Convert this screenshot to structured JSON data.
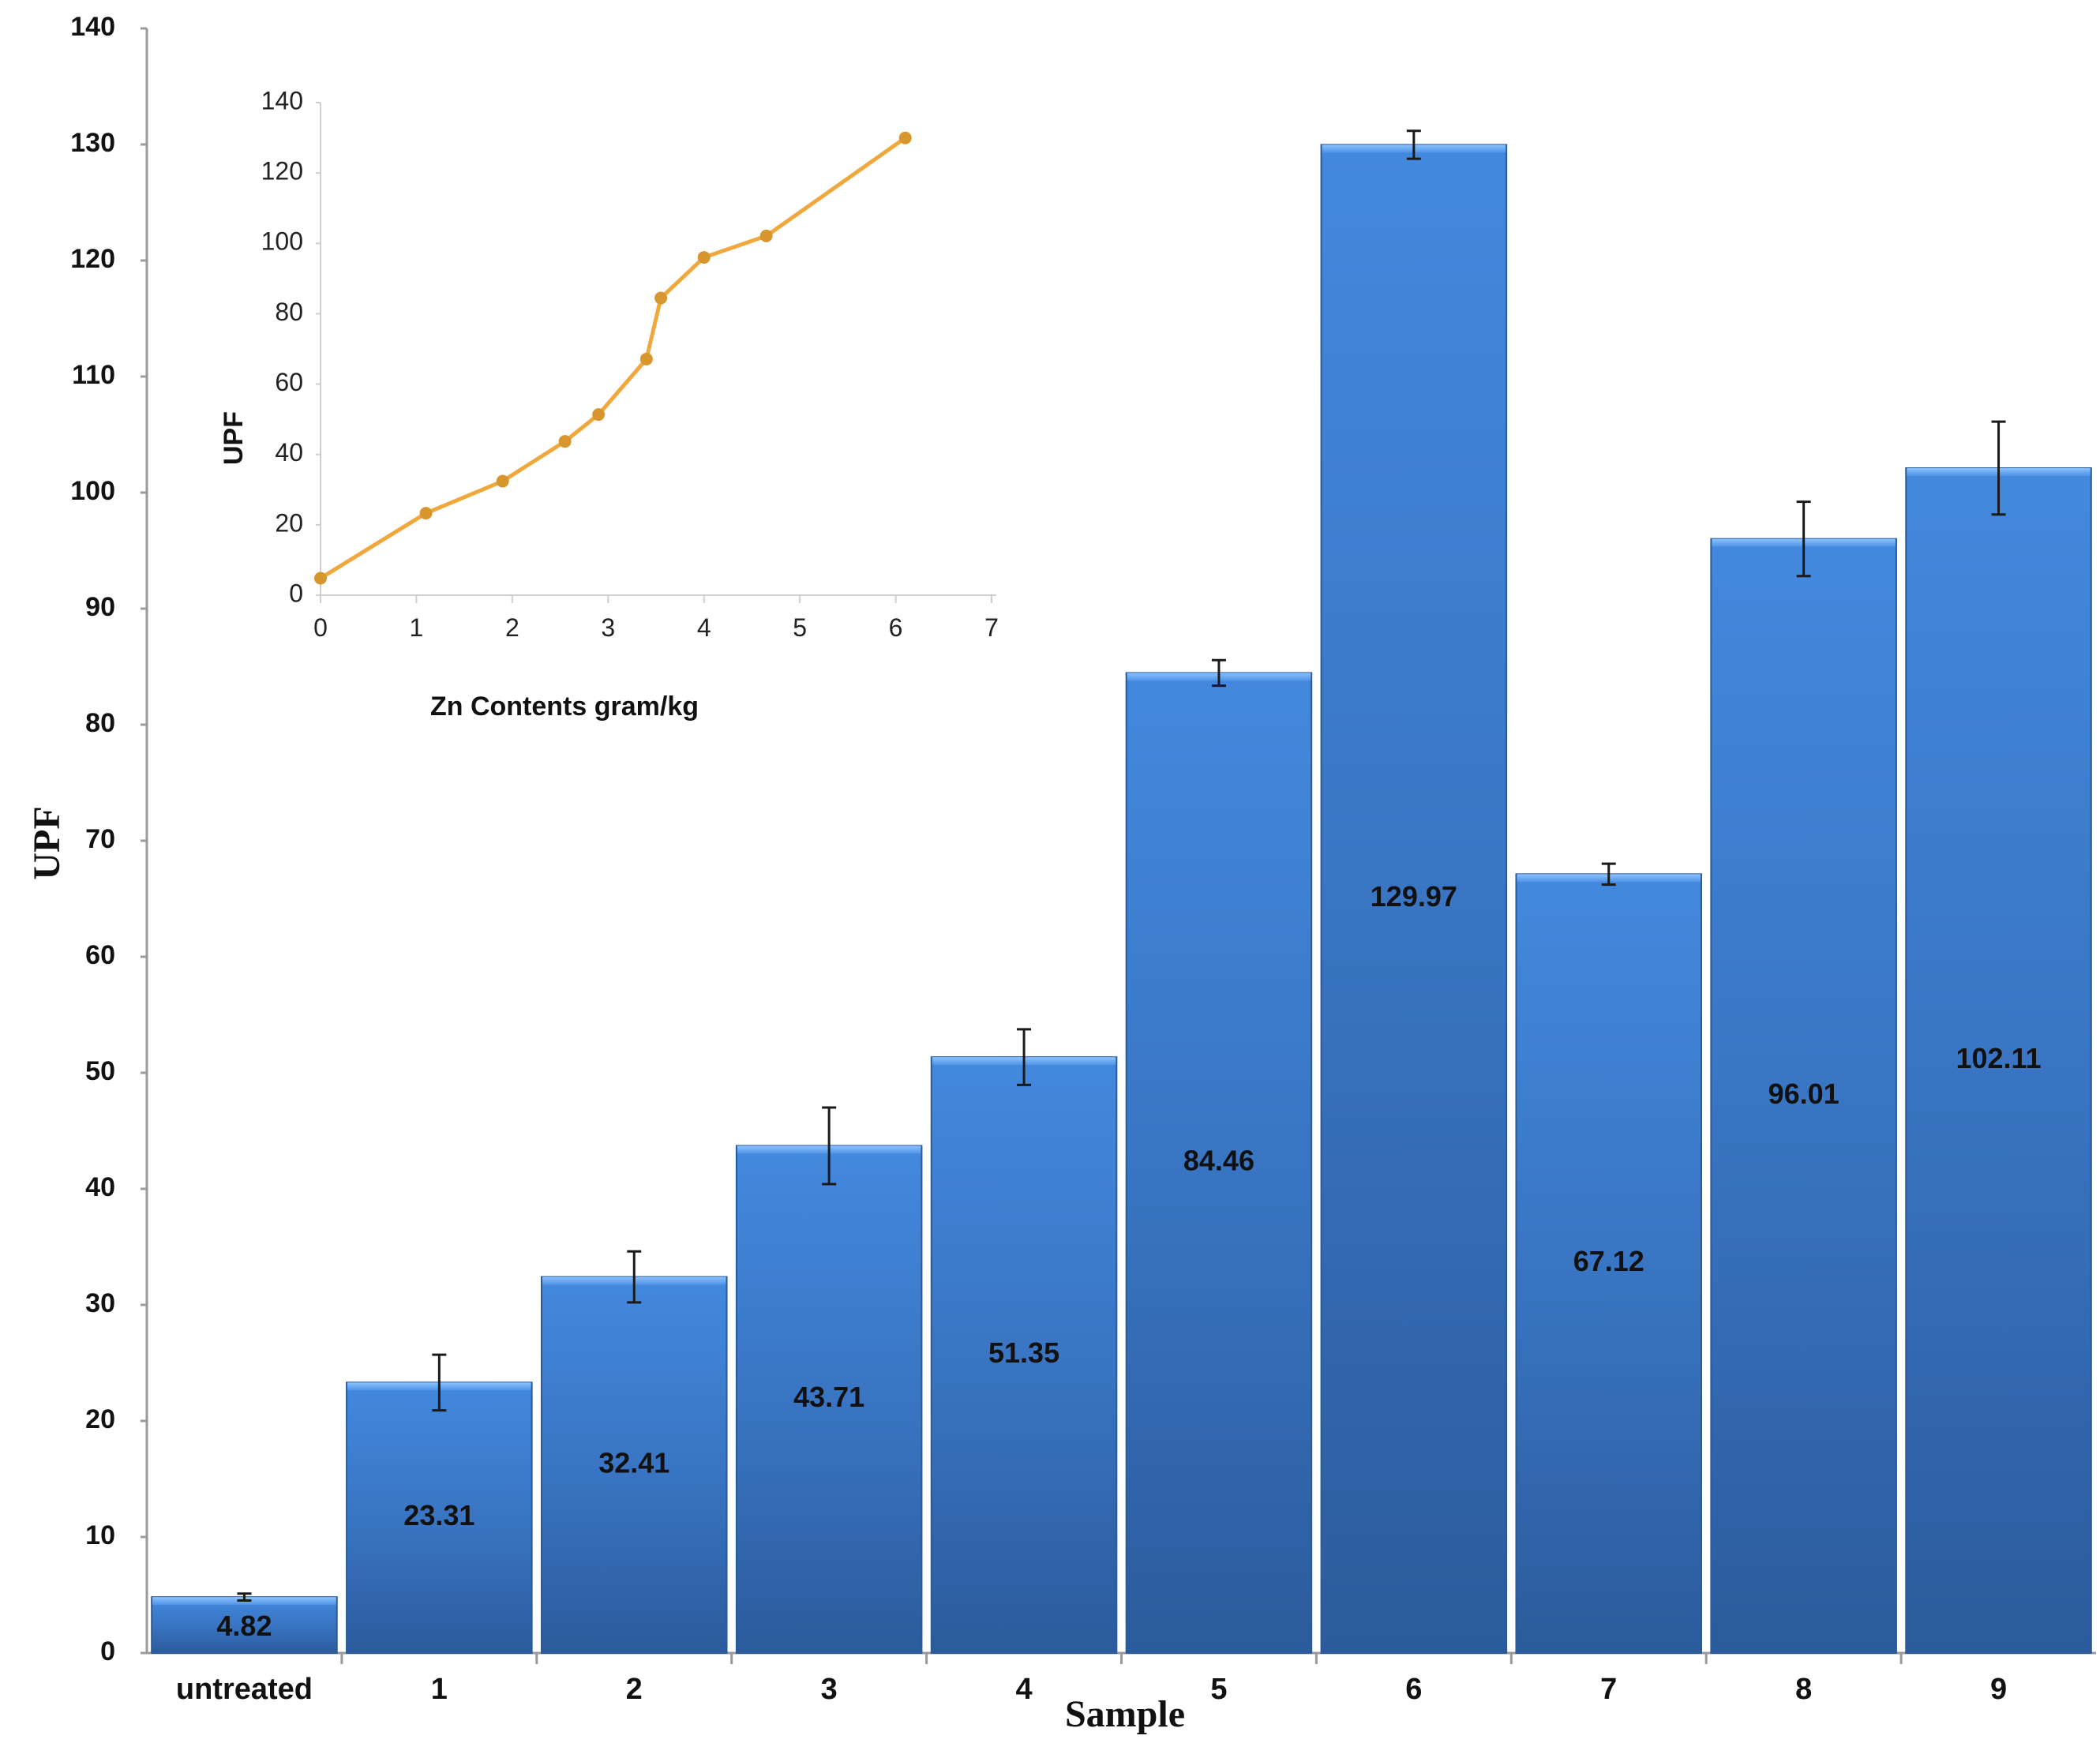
{
  "chart_data": [
    {
      "type": "bar",
      "title": "",
      "xlabel": "Sample",
      "ylabel": "UPF",
      "ylim": [
        0,
        140
      ],
      "yticks": [
        0,
        10,
        20,
        30,
        40,
        50,
        60,
        70,
        80,
        90,
        100,
        110,
        120,
        130,
        140
      ],
      "categories": [
        "untreated",
        "1",
        "2",
        "3",
        "4",
        "5",
        "6",
        "7",
        "8",
        "9"
      ],
      "values": [
        4.82,
        23.31,
        32.41,
        43.71,
        51.35,
        84.46,
        129.97,
        67.12,
        96.01,
        102.11
      ],
      "data_labels": [
        "4.82",
        "23.31",
        "32.41",
        "43.71",
        "51.35",
        "84.46",
        "129.97",
        "67.12",
        "96.01",
        "102.11"
      ],
      "error": [
        0.3,
        2.4,
        2.2,
        3.3,
        2.4,
        1.1,
        1.2,
        0.9,
        3.2,
        4.0
      ],
      "bar_color": "#3c79c8"
    },
    {
      "type": "line",
      "title": "",
      "xlabel": "Zn Contents gram/kg",
      "ylabel": "UPF",
      "xlim": [
        0,
        7
      ],
      "ylim": [
        0,
        140
      ],
      "xticks": [
        0,
        1,
        2,
        3,
        4,
        5,
        6,
        7
      ],
      "yticks": [
        0,
        20,
        40,
        60,
        80,
        100,
        120,
        140
      ],
      "x": [
        0,
        1.1,
        1.9,
        2.55,
        2.9,
        3.4,
        3.55,
        4.0,
        4.65,
        6.1
      ],
      "y": [
        4.82,
        23.31,
        32.41,
        43.71,
        51.35,
        67.12,
        84.46,
        96.01,
        102.11,
        129.97
      ],
      "line_color": "#f0a83c",
      "marker_color": "#d8962e"
    }
  ]
}
